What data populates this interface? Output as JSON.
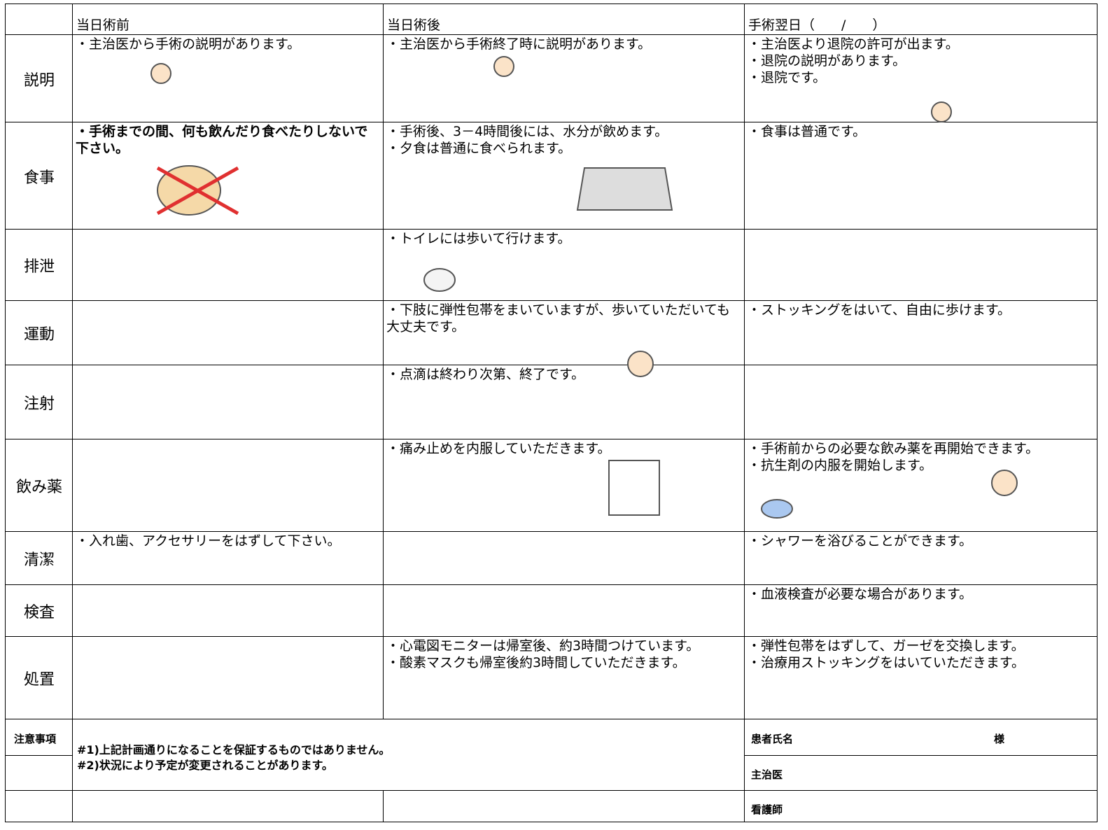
{
  "header": {
    "columns": [
      "当日術前",
      "当日術後",
      "手術翌日（　　/　　）"
    ]
  },
  "rows": [
    {
      "label": "説明",
      "cells": [
        [
          "・主治医から手術の説明があります。"
        ],
        [
          "・主治医から手術終了時に説明があります。"
        ],
        [
          "・主治医より退院の許可が出ます。",
          "・退院の説明があります。",
          "・退院です。"
        ]
      ]
    },
    {
      "label": "食事",
      "cells": [
        [
          "・手術までの間、何も飲んだり食べたりしないで下さい。"
        ],
        [
          "・手術後、3－4時間後には、水分が飲めます。",
          "・夕食は普通に食べられます。"
        ],
        [
          "・食事は普通です。"
        ]
      ]
    },
    {
      "label": "排泄",
      "cells": [
        [],
        [
          "・トイレには歩いて行けます。"
        ],
        []
      ]
    },
    {
      "label": "運動",
      "cells": [
        [],
        [
          "・下肢に弾性包帯をまいていますが、歩いていただいても大丈夫です。"
        ],
        [
          "・ストッキングをはいて、自由に歩けます。"
        ]
      ]
    },
    {
      "label": "注射",
      "cells": [
        [],
        [
          "・点滴は終わり次第、終了です。"
        ],
        []
      ]
    },
    {
      "label": "飲み薬",
      "cells": [
        [],
        [
          "・痛み止めを内服していただきます。"
        ],
        [
          "・手術前からの必要な飲み薬を再開始できます。",
          "・抗生剤の内服を開始します。"
        ]
      ]
    },
    {
      "label": "清潔",
      "cells": [
        [
          "・入れ歯、アクセサリーをはずして下さい。"
        ],
        [],
        [
          "・シャワーを浴びることができます。"
        ]
      ]
    },
    {
      "label": "検査",
      "cells": [
        [],
        [],
        [
          "・血液検査が必要な場合があります。"
        ]
      ]
    },
    {
      "label": "処置",
      "cells": [
        [],
        [
          "・心電図モニターは帰室後、約3時間つけています。",
          "・酸素マスクも帰室後約3時間していただきます。"
        ],
        [
          "・弾性包帯をはずして、ガーゼを交換します。",
          "・治療用ストッキングをはいていただきます。"
        ]
      ]
    }
  ],
  "footer": {
    "notes_label": "注意事項",
    "notes": [
      "#1)上記計画通りになることを保証するものではありません。",
      "#2)状況により予定が変更されることがあります。"
    ],
    "patient": "患者氏名",
    "patient_suffix": "様",
    "doctor": "主治医",
    "nurse": "看護師"
  }
}
